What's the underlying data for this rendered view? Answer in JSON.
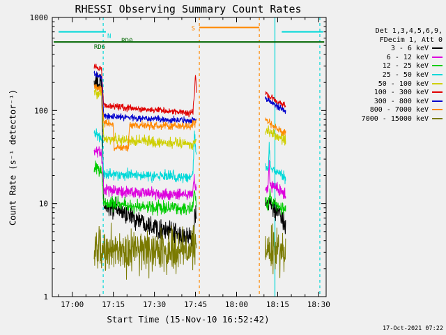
{
  "footer": {
    "timestamp": "17-Oct-2021 07:22"
  },
  "chart_data": {
    "type": "line",
    "title": "RHESSI Observing Summary Count Rates",
    "xlabel": "Start Time (15-Nov-10 16:52:42)",
    "ylabel": "Count Rate (s⁻¹ detector⁻¹)",
    "y_scale": "log",
    "y_range": [
      1,
      1000
    ],
    "x_unit": "minutes after 16:52:42",
    "x_range": [
      0,
      100
    ],
    "x_ticks": [
      {
        "t": 7.3,
        "label": "17:00"
      },
      {
        "t": 22.3,
        "label": "17:15"
      },
      {
        "t": 37.3,
        "label": "17:30"
      },
      {
        "t": 52.3,
        "label": "17:45"
      },
      {
        "t": 67.3,
        "label": "18:00"
      },
      {
        "t": 82.3,
        "label": "18:15"
      },
      {
        "t": 97.3,
        "label": "18:30"
      }
    ],
    "x_minor_step": 5,
    "y_ticks": [
      1,
      10,
      100,
      1000
    ],
    "legend_header": [
      "Det 1,3,4,5,6,9,",
      "FDecim 1, Att 0"
    ],
    "series": [
      {
        "name": "3 - 6 keV",
        "color": "#000000",
        "noise": 0.09,
        "segments": [
          [
            [
              15.3,
              200
            ],
            [
              18.0,
              190
            ],
            [
              18.8,
              9.5
            ],
            [
              24,
              8.5
            ],
            [
              30,
              7
            ],
            [
              36,
              6
            ],
            [
              42,
              5
            ],
            [
              47,
              4.5
            ],
            [
              50.5,
              4.2
            ],
            [
              51.6,
              4.5
            ],
            [
              52.0,
              9
            ],
            [
              52.6,
              7
            ]
          ],
          [
            [
              77.8,
              10
            ],
            [
              78.6,
              9.5
            ],
            [
              79.2,
              11
            ],
            [
              80,
              9
            ],
            [
              82,
              8
            ],
            [
              84,
              6.5
            ],
            [
              85.2,
              5.5
            ]
          ]
        ]
      },
      {
        "name": "6 - 12 keV",
        "color": "#dd00dd",
        "noise": 0.055,
        "segments": [
          [
            [
              15.3,
              38
            ],
            [
              18.0,
              35
            ],
            [
              18.8,
              14
            ],
            [
              25,
              13.5
            ],
            [
              32,
              13
            ],
            [
              40,
              12.8
            ],
            [
              47,
              12.5
            ],
            [
              51.2,
              12.5
            ],
            [
              51.8,
              19
            ],
            [
              52.2,
              15
            ],
            [
              52.6,
              14
            ]
          ],
          [
            [
              77.8,
              15
            ],
            [
              78.8,
              14.5
            ],
            [
              79.15,
              34
            ],
            [
              79.5,
              16
            ],
            [
              81,
              15
            ],
            [
              83,
              14
            ],
            [
              85.2,
              12.5
            ]
          ]
        ]
      },
      {
        "name": "12 - 25 keV",
        "color": "#00cc00",
        "noise": 0.06,
        "segments": [
          [
            [
              15.3,
              25
            ],
            [
              18.0,
              23
            ],
            [
              18.8,
              9.8
            ],
            [
              25,
              9.6
            ],
            [
              32,
              9.3
            ],
            [
              40,
              9
            ],
            [
              47,
              8.8
            ],
            [
              51.2,
              8.8
            ],
            [
              51.8,
              13.5
            ],
            [
              52.6,
              10.5
            ]
          ],
          [
            [
              77.8,
              10.5
            ],
            [
              79,
              10
            ],
            [
              79.3,
              13.5
            ],
            [
              79.8,
              10.5
            ],
            [
              82,
              9.5
            ],
            [
              85.2,
              8.5
            ]
          ]
        ]
      },
      {
        "name": "25 - 50 keV",
        "color": "#00d8d8",
        "noise": 0.05,
        "segments": [
          [
            [
              15.3,
              55
            ],
            [
              18.0,
              50
            ],
            [
              18.8,
              21
            ],
            [
              26,
              20.5
            ],
            [
              34,
              20
            ],
            [
              42,
              19.5
            ],
            [
              50,
              19.5
            ],
            [
              51.3,
              20
            ],
            [
              51.9,
              58
            ],
            [
              52.3,
              42
            ],
            [
              52.6,
              30
            ]
          ],
          [
            [
              77.8,
              25
            ],
            [
              78.9,
              24
            ],
            [
              79.2,
              44
            ],
            [
              79.7,
              24
            ],
            [
              82,
              22
            ],
            [
              85.2,
              19
            ]
          ]
        ]
      },
      {
        "name": "50 - 100 keV",
        "color": "#cfcf00",
        "noise": 0.05,
        "segments": [
          [
            [
              15.3,
              160
            ],
            [
              18.0,
              150
            ],
            [
              18.8,
              50
            ],
            [
              25,
              48
            ],
            [
              32,
              47
            ],
            [
              40,
              45.5
            ],
            [
              47,
              44.5
            ],
            [
              52,
              44
            ],
            [
              52.6,
              46
            ]
          ],
          [
            [
              77.8,
              62
            ],
            [
              79.5,
              58
            ],
            [
              81,
              55
            ],
            [
              83,
              51
            ],
            [
              85.2,
              47
            ]
          ]
        ]
      },
      {
        "name": "100 - 300 keV",
        "color": "#e00000",
        "noise": 0.03,
        "segments": [
          [
            [
              15.3,
              300
            ],
            [
              18.0,
              280
            ],
            [
              18.8,
              110
            ],
            [
              22,
              112
            ],
            [
              27,
              107
            ],
            [
              33,
              103
            ],
            [
              39,
              100
            ],
            [
              45,
              97
            ],
            [
              50,
              95
            ],
            [
              51.4,
              98
            ],
            [
              51.9,
              150
            ],
            [
              52.15,
              225
            ],
            [
              52.45,
              235
            ],
            [
              52.6,
              160
            ]
          ],
          [
            [
              77.8,
              155
            ],
            [
              78.6,
              150
            ],
            [
              80,
              138
            ],
            [
              81.5,
              128
            ],
            [
              83,
              121
            ],
            [
              85.2,
              112
            ]
          ]
        ]
      },
      {
        "name": "300 - 800 keV",
        "color": "#0000cc",
        "noise": 0.03,
        "segments": [
          [
            [
              15.3,
              250
            ],
            [
              18.0,
              230
            ],
            [
              18.8,
              88
            ],
            [
              24,
              86
            ],
            [
              30,
              83
            ],
            [
              36,
              81
            ],
            [
              42,
              79
            ],
            [
              48,
              78
            ],
            [
              52,
              78
            ],
            [
              52.6,
              82
            ]
          ],
          [
            [
              77.8,
              138
            ],
            [
              78.6,
              132
            ],
            [
              80,
              122
            ],
            [
              81.5,
              114
            ],
            [
              83,
              107
            ],
            [
              85.2,
              99
            ]
          ]
        ]
      },
      {
        "name": "800 - 7000 keV",
        "color": "#ff8800",
        "noise": 0.035,
        "segments": [
          [
            [
              15.3,
              180
            ],
            [
              18.0,
              170
            ],
            [
              18.8,
              72
            ],
            [
              22.2,
              71
            ],
            [
              22.6,
              40
            ],
            [
              27.8,
              40
            ],
            [
              28.2,
              69
            ],
            [
              34,
              69
            ],
            [
              40,
              68
            ],
            [
              46,
              67.5
            ],
            [
              50.5,
              68
            ],
            [
              52.2,
              73
            ],
            [
              52.6,
              75
            ]
          ],
          [
            [
              77.8,
              80
            ],
            [
              78.8,
              77
            ],
            [
              80,
              71
            ],
            [
              81.5,
              66
            ],
            [
              83,
              62
            ],
            [
              85.2,
              57
            ]
          ]
        ]
      },
      {
        "name": "7000 - 15000 keV",
        "color": "#7a7a00",
        "noise": 0.19,
        "segments": [
          [
            [
              15.3,
              3.3
            ],
            [
              20,
              3.2
            ],
            [
              26,
              3.1
            ],
            [
              32,
              3.2
            ],
            [
              38,
              3.1
            ],
            [
              44,
              3.2
            ],
            [
              50,
              3.1
            ],
            [
              52.6,
              3.2
            ]
          ],
          [
            [
              77.8,
              3.4
            ],
            [
              80,
              3.2
            ],
            [
              83,
              3.1
            ],
            [
              85.2,
              2.9
            ]
          ]
        ]
      }
    ],
    "status_lines": [
      {
        "name": "night-flag",
        "color": "#00d8d8",
        "value": 700,
        "spans": [
          [
            2.3,
            19.6
          ],
          [
            83.8,
            98.9
          ]
        ]
      },
      {
        "name": "south-flag",
        "color": "#ff8800",
        "value": 780,
        "spans": [
          [
            53.7,
            75.6
          ]
        ]
      },
      {
        "name": "decimation-flag",
        "color": "#006600",
        "value": 545,
        "spans": [
          [
            0.5,
            99.3
          ]
        ]
      }
    ],
    "annotations": [
      {
        "text": "N",
        "color": "#00d8d8",
        "t": 20.8,
        "v": 700,
        "dy": 9
      },
      {
        "text": "S",
        "color": "#ff8800",
        "t": 51.5,
        "v": 780,
        "dy": 4
      },
      {
        "text": "RD6",
        "color": "#006600",
        "t": 17.3,
        "v": 545,
        "dy": 10
      },
      {
        "text": "RD0",
        "color": "#006600",
        "t": 27.3,
        "v": 545,
        "dy": 1
      }
    ],
    "vlines": [
      {
        "t": 18.6,
        "color": "#00d8d8",
        "dashed": true
      },
      {
        "t": 97.7,
        "color": "#00d8d8",
        "dashed": true
      },
      {
        "t": 81.3,
        "color": "#00d8d8",
        "dashed": false
      },
      {
        "t": 53.7,
        "color": "#ff8800",
        "dashed": true
      },
      {
        "t": 75.6,
        "color": "#ff8800",
        "dashed": true
      }
    ]
  }
}
